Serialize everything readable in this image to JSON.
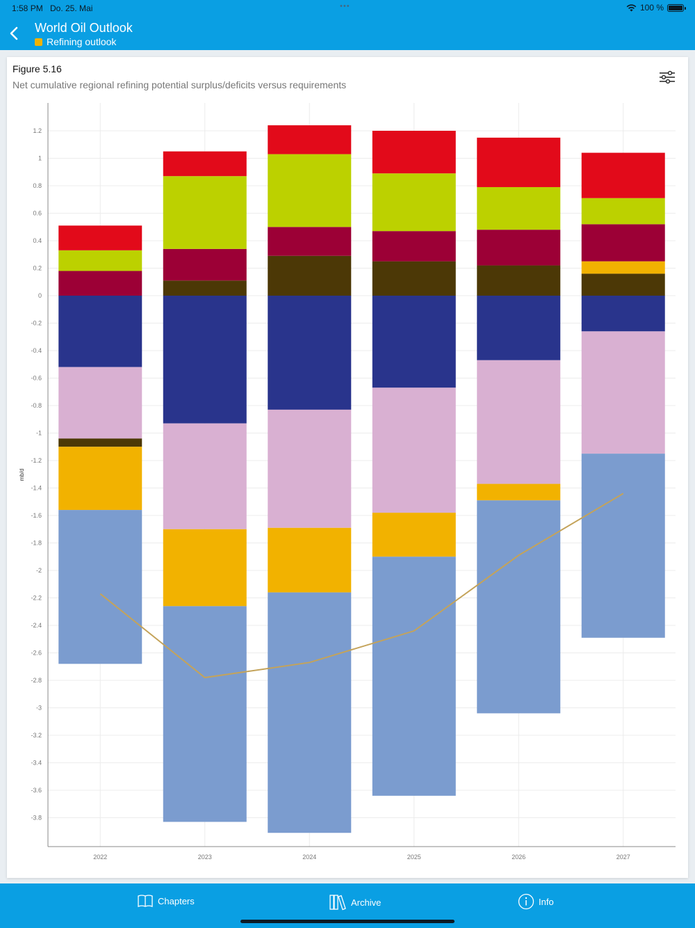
{
  "status_bar": {
    "time": "1:58 PM",
    "date": "Do. 25. Mai",
    "battery": "100 %"
  },
  "nav": {
    "title": "World Oil Outlook",
    "subtitle": "Refining outlook",
    "subtitle_color": "#f2b200"
  },
  "figure": {
    "title": "Figure 5.16",
    "subtitle": "Net cumulative regional refining potential surplus/deficits versus requirements"
  },
  "tabs": [
    {
      "label": "Chapters",
      "icon": "book-icon"
    },
    {
      "label": "Archive",
      "icon": "archive-books-icon"
    },
    {
      "label": "Info",
      "icon": "info-icon"
    }
  ],
  "chart_data": {
    "type": "bar",
    "stacked": true,
    "categories": [
      "2022",
      "2023",
      "2024",
      "2025",
      "2026",
      "2027"
    ],
    "ylabel": "mb/d",
    "xlabel": "",
    "ylim": [
      -4.0,
      1.4
    ],
    "yticks": [
      1.2,
      1,
      0.8,
      0.6,
      0.4,
      0.2,
      0,
      -0.2,
      -0.4,
      -0.6,
      -0.8,
      -1,
      -1.2,
      -1.4,
      -1.6,
      -1.8,
      -2,
      -2.2,
      -2.4,
      -2.6,
      -2.8,
      -3,
      -3.2,
      -3.4,
      -3.6,
      -3.8
    ],
    "grid": true,
    "positive_series": [
      {
        "color": "#4c3806",
        "values": [
          0,
          0.11,
          0.29,
          0.25,
          0.22,
          0.16
        ]
      },
      {
        "color": "#f2b200",
        "values": [
          0,
          0,
          0,
          0,
          0,
          0.09
        ]
      },
      {
        "color": "#9c0036",
        "values": [
          0.18,
          0.23,
          0.21,
          0.22,
          0.26,
          0.27
        ]
      },
      {
        "color": "#bcd100",
        "values": [
          0.15,
          0.53,
          0.53,
          0.42,
          0.31,
          0.19
        ]
      },
      {
        "color": "#e20a1a",
        "values": [
          0.18,
          0.18,
          0.21,
          0.31,
          0.36,
          0.33
        ]
      }
    ],
    "negative_series": [
      {
        "color": "#29348c",
        "values": [
          0.52,
          0.93,
          0.83,
          0.67,
          0.47,
          0.26
        ]
      },
      {
        "color": "#d9b0d2",
        "values": [
          0.52,
          0.77,
          0.86,
          0.91,
          0.9,
          0.89
        ]
      },
      {
        "color": "#4c3806",
        "values": [
          0.06,
          0,
          0,
          0,
          0,
          0
        ]
      },
      {
        "color": "#f2b200",
        "values": [
          0.46,
          0.56,
          0.47,
          0.32,
          0.12,
          0
        ]
      },
      {
        "color": "#7b9ccf",
        "values": [
          1.12,
          1.57,
          1.75,
          1.74,
          1.55,
          1.34
        ]
      }
    ],
    "line_series": {
      "color": "#c4a35a",
      "values": [
        -2.17,
        -2.78,
        -2.67,
        -2.44,
        -1.89,
        -1.44
      ]
    }
  }
}
